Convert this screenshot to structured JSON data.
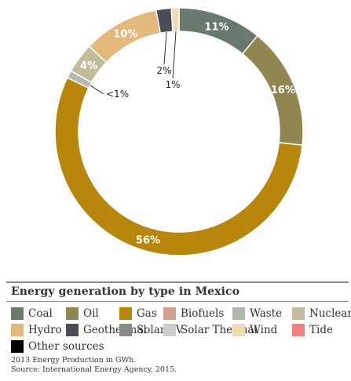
{
  "chart_data": {
    "type": "pie",
    "title": "Energy generation by type in Mexico",
    "categories": [
      "Coal",
      "Oil",
      "Gas",
      "Biofuels",
      "Waste",
      "Nuclear",
      "Hydro",
      "Geothermal",
      "Solar PV",
      "Solar Thermal",
      "Wind",
      "Tide",
      "Other sources"
    ],
    "values": [
      11,
      16,
      56,
      0,
      1,
      4,
      10,
      2,
      0,
      0,
      1,
      0,
      0
    ],
    "data_labels": [
      "11%",
      "16%",
      "56%",
      "",
      "<1%",
      "4%",
      "10%",
      "2%",
      "",
      "",
      "1%",
      "",
      ""
    ],
    "colors": {
      "Coal": "#6b7a6e",
      "Oil": "#8f8650",
      "Gas": "#b8860b",
      "Biofuels": "#d4a08c",
      "Waste": "#b3b8b3",
      "Nuclear": "#c2bc9c",
      "Hydro": "#e3b87a",
      "Geothermal": "#4a4c55",
      "Solar PV": "#888888",
      "Solar Thermal": "#cccccc",
      "Wind": "#f2d9b3",
      "Tide": "#f08080",
      "Other sources": "#000000"
    },
    "legend_placement": "bottom",
    "notes": [
      "2013 Energy Production in GWh.",
      "Source: International Energy Agency, 2015."
    ]
  }
}
